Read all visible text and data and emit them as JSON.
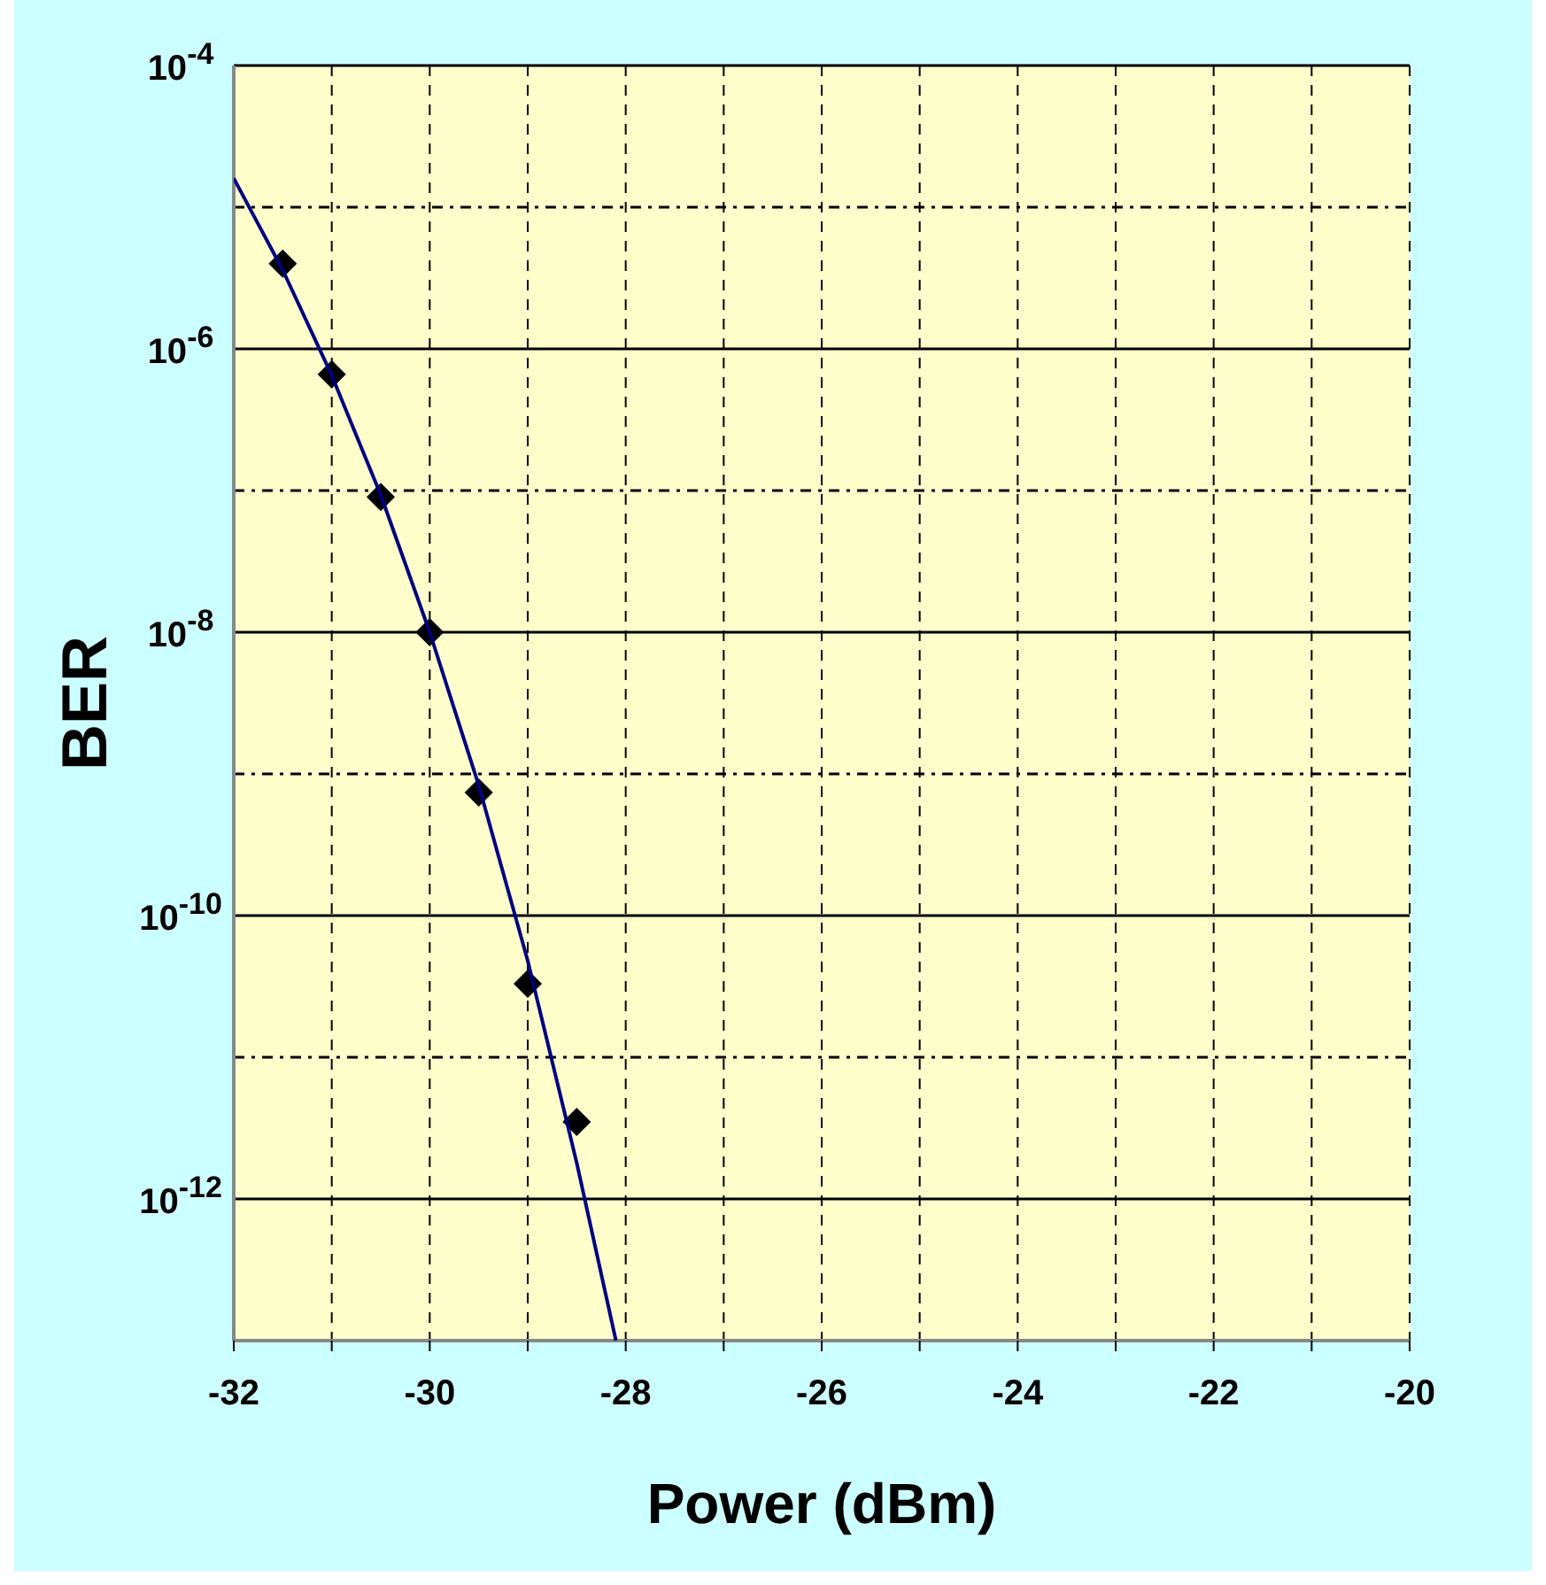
{
  "chart_data": {
    "type": "scatter",
    "xlabel": "Power (dBm)",
    "ylabel": "BER",
    "log": "y",
    "grid": true,
    "marker": "diamond",
    "xlim": [
      -32,
      -20
    ],
    "xticks": [
      -32,
      {
        "value": -31,
        "label": null
      },
      -30,
      {
        "value": -29,
        "label": null
      },
      -28,
      {
        "value": -27,
        "label": null
      },
      -26,
      {
        "value": -25,
        "label": null
      },
      -24,
      {
        "value": -23,
        "label": null
      },
      -22,
      {
        "value": -21,
        "label": null
      },
      -20
    ],
    "ylim": [
      1e-13,
      0.0001
    ],
    "yticks": [
      {
        "value": 0.0001,
        "label": "10$^{-4}$"
      },
      {
        "value": 1e-05,
        "label": null
      },
      {
        "value": 1e-06,
        "label": "10$^{-6}$"
      },
      {
        "value": 1e-07,
        "label": null
      },
      {
        "value": 1e-08,
        "label": "10$^{-8}$"
      },
      {
        "value": 1e-09,
        "label": null
      },
      {
        "value": 1e-10,
        "label": "10$^{-10}$"
      },
      {
        "value": 1e-11,
        "label": null
      },
      {
        "value": 1e-12,
        "label": "10$^{-12}$"
      }
    ],
    "series": [
      {
        "color": "#000000",
        "x": [
          -31.5,
          -31,
          -30.5,
          -30,
          -29.5,
          -29,
          -28.5
        ],
        "values": [
          4e-06,
          6.6e-07,
          9e-08,
          1e-08,
          7.4e-10,
          3.3e-11,
          3.5e-12
        ]
      },
      {
        "type": "line",
        "color": "#000080",
        "marker": "none",
        "x": [
          -32,
          -31.5,
          -31,
          -30.5,
          -30,
          -29.5,
          -29,
          -28.5,
          -28.1
        ],
        "values": [
          1.6e-05,
          3.6e-06,
          6.5e-07,
          9.3e-08,
          1e-08,
          8.3e-10,
          4.8e-11,
          1.8e-12,
          1e-13
        ]
      }
    ]
  }
}
